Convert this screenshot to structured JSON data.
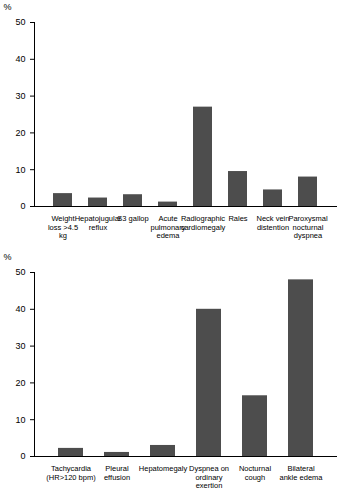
{
  "chart_data": [
    {
      "type": "bar",
      "categories": [
        "Weight loss >4.5 kg",
        "Hepatojugular reflux",
        "S3 gallop",
        "Acute pulmonary edema",
        "Radiographic cardiomegaly",
        "Rales",
        "Neck vein distention",
        "Paroxysmal nocturnal dyspnea"
      ],
      "values": [
        3.5,
        2.3,
        3.2,
        1.2,
        27,
        9.5,
        4.5,
        8
      ],
      "color": "#4d4d4d",
      "y_label": "%",
      "ylim": [
        0,
        50
      ],
      "yticks": [
        0,
        10,
        20,
        30,
        40,
        50
      ],
      "grid": false
    },
    {
      "type": "bar",
      "categories": [
        "Tachycardia (HR>120 bpm)",
        "Pleural effusion",
        "Hepatomegaly",
        "Dyspnea on ordinary exertion",
        "Nocturnal cough",
        "Bilateral ankle edema"
      ],
      "values": [
        2.2,
        1.1,
        3,
        40,
        16.5,
        48
      ],
      "color": "#4d4d4d",
      "y_label": "%",
      "ylim": [
        0,
        50
      ],
      "yticks": [
        0,
        10,
        20,
        30,
        40,
        50
      ],
      "grid": false
    }
  ]
}
